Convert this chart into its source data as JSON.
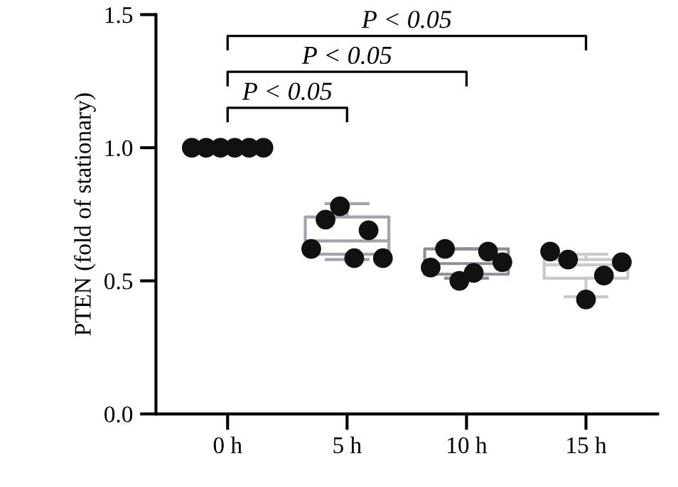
{
  "chart_data": {
    "type": "box",
    "ylabel": "PTEN (fold of stationary)",
    "categories": [
      "0 h",
      "5 h",
      "10 h",
      "15 h"
    ],
    "ylim": [
      0,
      1.5
    ],
    "yticks": [
      {
        "value": 0,
        "label": "0.0"
      },
      {
        "value": 0.5,
        "label": "0.5"
      },
      {
        "value": 1.0,
        "label": "1.0"
      },
      {
        "value": 1.5,
        "label": "1.5"
      }
    ],
    "grid": false,
    "marker": "circle",
    "annotations": [
      "P < 0.05",
      "P < 0.05",
      "P < 0.05"
    ],
    "series": [
      {
        "colors": [
          "#9a9ea5",
          "#a0a4ab",
          "#8c9096",
          "#c8cacd"
        ],
        "boxes": [
          {
            "low": 1.0,
            "q1": 1.0,
            "median": 1.0,
            "q3": 1.0,
            "high": 1.0
          },
          {
            "low": 0.58,
            "q1": 0.6,
            "median": 0.65,
            "q3": 0.74,
            "high": 0.79
          },
          {
            "low": 0.51,
            "q1": 0.525,
            "median": 0.565,
            "q3": 0.62,
            "high": 0.62
          },
          {
            "low": 0.44,
            "q1": 0.51,
            "median": 0.56,
            "q3": 0.58,
            "high": 0.6
          }
        ]
      },
      {
        "type": "scatter",
        "color": "#111111",
        "x": [
          "0 h",
          "0 h",
          "0 h",
          "0 h",
          "0 h",
          "0 h",
          "5 h",
          "5 h",
          "5 h",
          "5 h",
          "5 h",
          "5 h",
          "10 h",
          "10 h",
          "10 h",
          "10 h",
          "10 h",
          "10 h",
          "15 h",
          "15 h",
          "15 h",
          "15 h",
          "15 h"
        ],
        "values": [
          1.0,
          1.0,
          1.0,
          1.0,
          1.0,
          1.0,
          0.62,
          0.73,
          0.78,
          0.585,
          0.69,
          0.585,
          0.55,
          0.62,
          0.5,
          0.53,
          0.61,
          0.57,
          0.61,
          0.58,
          0.43,
          0.52,
          0.57
        ]
      }
    ]
  }
}
